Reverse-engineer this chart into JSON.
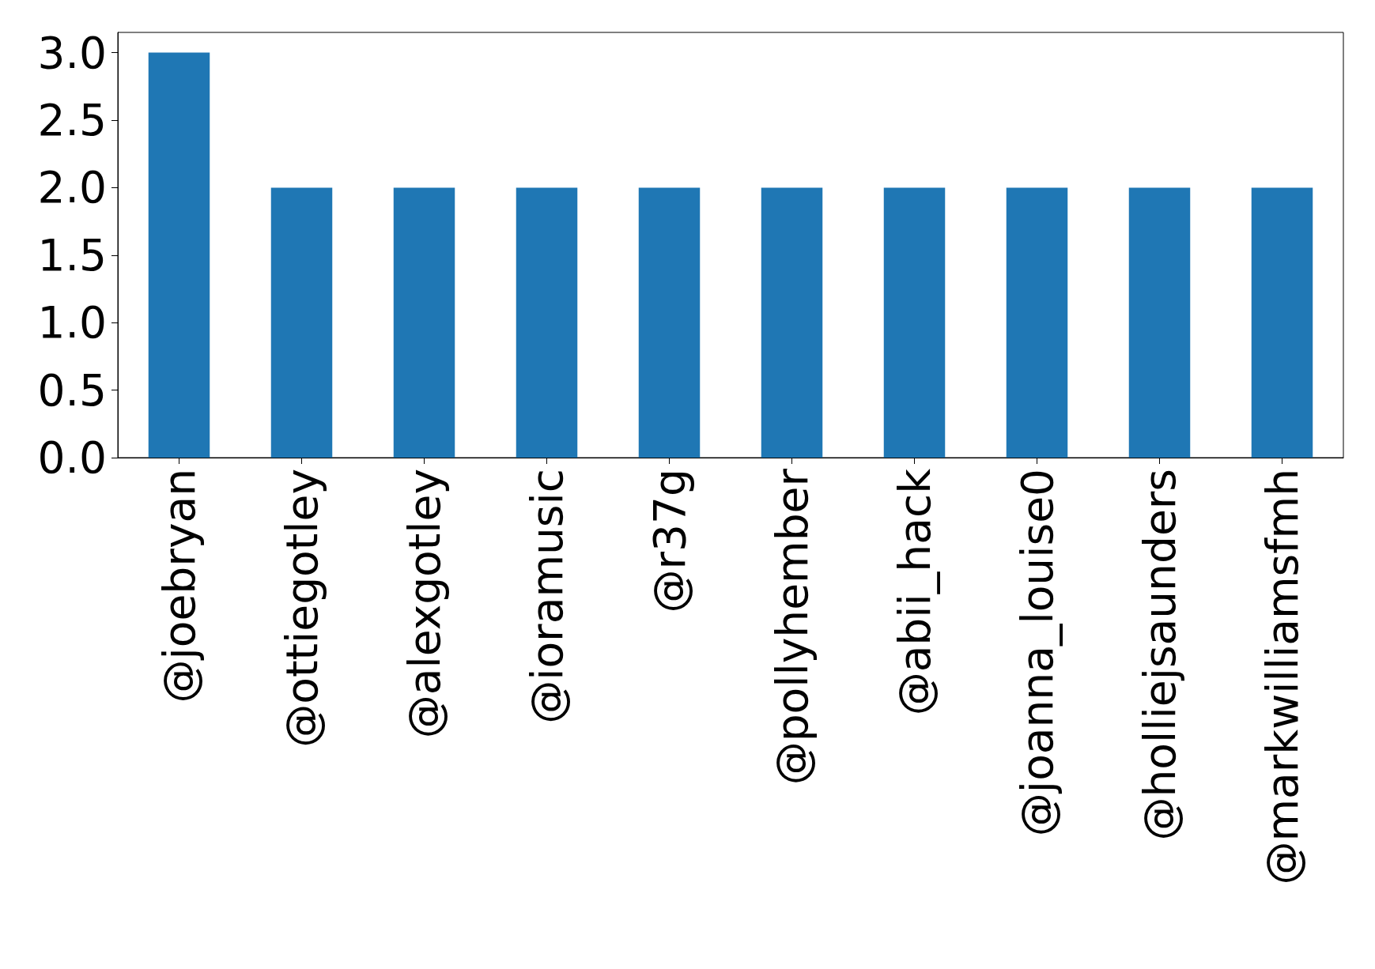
{
  "chart_data": {
    "type": "bar",
    "categories": [
      "@joebryan",
      "@ottiegotley",
      "@alexgotley",
      "@ioramusic",
      "@r37g",
      "@pollyhember",
      "@abii_hack",
      "@joanna_louise0",
      "@holliejsaunders",
      "@markwilliamsfmh"
    ],
    "values": [
      3,
      2,
      2,
      2,
      2,
      2,
      2,
      2,
      2,
      2
    ],
    "color": "#1f77b4",
    "ylim": [
      0,
      3.15
    ],
    "yticks": [
      {
        "value": 0,
        "label": "0.0"
      },
      {
        "value": 0.5,
        "label": "0.5"
      },
      {
        "value": 1,
        "label": "1.0"
      },
      {
        "value": 1.5,
        "label": "1.5"
      },
      {
        "value": 2,
        "label": "2.0"
      },
      {
        "value": 2.5,
        "label": "2.5"
      },
      {
        "value": 3,
        "label": "3.0"
      }
    ],
    "grid": false
  }
}
